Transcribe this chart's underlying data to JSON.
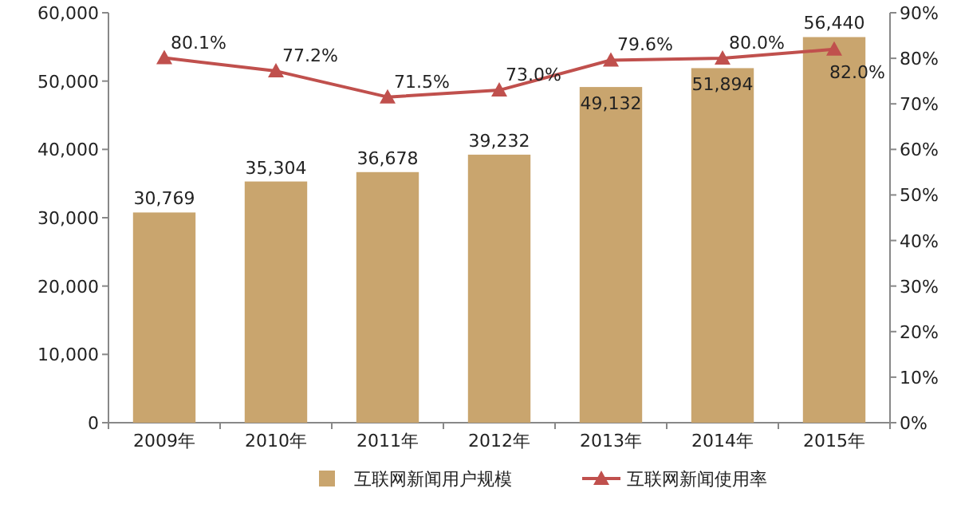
{
  "chart_data": {
    "type": "bar",
    "categories": [
      "2009年",
      "2010年",
      "2011年",
      "2012年",
      "2013年",
      "2014年",
      "2015年"
    ],
    "series": [
      {
        "name": "互联网新闻用户规模",
        "color": "#c9a56e",
        "values": [
          30769,
          35304,
          36678,
          39232,
          49132,
          51894,
          56440
        ],
        "value_labels": [
          "30,769",
          "35,304",
          "36,678",
          "39,232",
          "49,132",
          "51,894",
          "56,440"
        ]
      },
      {
        "name": "互联网新闻使用率",
        "type": "line",
        "axis": "y2",
        "color": "#c0504d",
        "marker": "triangle",
        "values": [
          80.1,
          77.2,
          71.5,
          73.0,
          79.6,
          80.0,
          82.0
        ],
        "value_labels": [
          "80.1%",
          "77.2%",
          "71.5%",
          "73.0%",
          "79.6%",
          "80.0%",
          "82.0%"
        ]
      }
    ],
    "ylim": [
      0,
      60000
    ],
    "yticks": [
      0,
      {
        "value": 10000,
        "label": "10,000"
      },
      {
        "value": 20000,
        "label": "20,000"
      },
      {
        "value": 30000,
        "label": "30,000"
      },
      {
        "value": 40000,
        "label": "40,000"
      },
      {
        "value": 50000,
        "label": "50,000"
      },
      {
        "value": 60000,
        "label": "60,000"
      }
    ],
    "y2lim": [
      0,
      90
    ],
    "y2ticks": [
      {
        "value": 0,
        "label": "0%"
      },
      {
        "value": 10,
        "label": "10%"
      },
      {
        "value": 20,
        "label": "20%"
      },
      {
        "value": 30,
        "label": "30%"
      },
      {
        "value": 40,
        "label": "40%"
      },
      {
        "value": 50,
        "label": "50%"
      },
      {
        "value": 60,
        "label": "60%"
      },
      {
        "value": 70,
        "label": "70%"
      },
      {
        "value": 80,
        "label": "80%"
      },
      {
        "value": 90,
        "label": "90%"
      }
    ],
    "legend": "bottom"
  }
}
